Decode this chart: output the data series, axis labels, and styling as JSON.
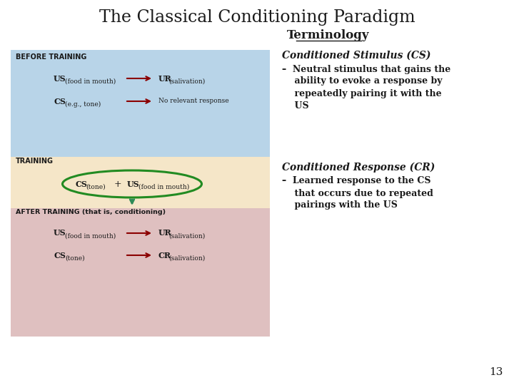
{
  "title": "The Classical Conditioning Paradigm",
  "subtitle": "Terminology",
  "bg_color": "#ffffff",
  "before_bg": "#b8d4e8",
  "training_bg": "#f5e6c8",
  "after_bg": "#dfc0c0",
  "before_label": "BEFORE TRAINING",
  "training_label": "TRAINING",
  "after_label": "AFTER TRAINING (that is, conditioning)",
  "arrow_color": "#8b0000",
  "ellipse_color": "#228b22",
  "down_arrow_color": "#2e8b57",
  "cs_title": "Conditioned Stimulus (CS)",
  "cs_body_line1": "–  Neutral stimulus that gains the",
  "cs_body_line2": "    ability to evoke a response by",
  "cs_body_line3": "    repeatedly pairing it with the",
  "cs_body_line4": "    US",
  "cr_title": "Conditioned Response (CR)",
  "cr_body_line1": "–  Learned response to the CS",
  "cr_body_line2": "    that occurs due to repeated",
  "cr_body_line3": "    pairings with the US",
  "page_number": "13"
}
